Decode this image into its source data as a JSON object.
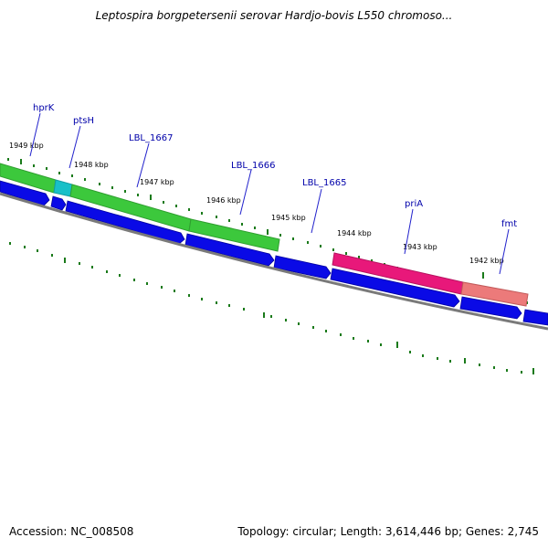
{
  "map": {
    "title": "Leptospira borgpetersenii serovar Hardjo-bovis L550 chromoso...",
    "accession": "Accession: NC_008508",
    "stats": "Topology: circular; Length: 3,614,446 bp; Genes: 2,745",
    "kbp_labels": [
      "1949 kbp",
      "1948 kbp",
      "1947 kbp",
      "1946 kbp",
      "1945 kbp",
      "1944 kbp",
      "1943 kbp",
      "1942 kbp"
    ],
    "genes": [
      "hprK",
      "ptsH",
      "LBL_1667",
      "LBL_1666",
      "LBL_1665",
      "priA",
      "fmt"
    ],
    "colors": {
      "green_gene": "#3cc83c",
      "cyan_gene": "#18c0c8",
      "magenta_gene": "#e8187a",
      "salmon_gene": "#ec7a7a",
      "blue_cds": "#0a0ae6",
      "tick": "#1a7a1a",
      "backbone": "#7a7a7a",
      "gene_label": "#0000aa"
    }
  }
}
